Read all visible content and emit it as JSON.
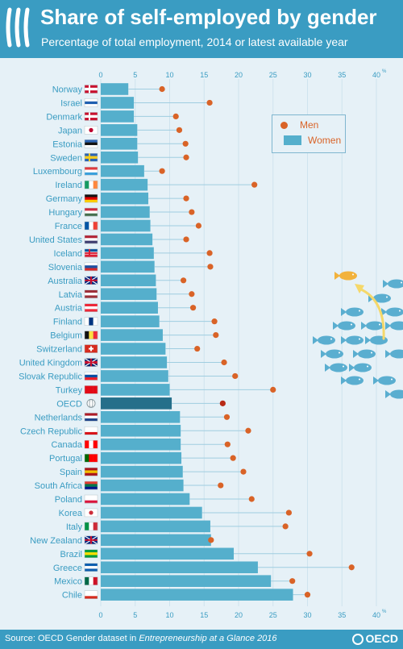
{
  "header": {
    "title": "Share of self-employed by gender",
    "subtitle": "Percentage of total employment, 2014 or latest available year"
  },
  "footer": {
    "source_prefix": "Source: OECD Gender dataset in ",
    "source_italic": "Entrepreneurship at a Glance 2016",
    "logo_text": "OECD"
  },
  "legend": {
    "men": "Men",
    "women": "Women"
  },
  "colors": {
    "header_bg": "#3a9cc2",
    "plot_bg": "#e6f1f7",
    "women_bar": "#55afcc",
    "oecd_bar": "#256f8a",
    "men_dot": "#d96327",
    "oecd_dot": "#b82a16",
    "label_text": "#3a9cc2",
    "fish": "#5aaed0",
    "gold_fish": "#f2b23c"
  },
  "icons": [
    "country-flag-icon",
    "fish-school-illustration",
    "gold-fish-icon",
    "oecd-globe-icon"
  ],
  "chart_data": {
    "type": "bar",
    "orientation": "horizontal",
    "xlim": [
      0,
      40
    ],
    "xticks": [
      "0",
      "5",
      "10",
      "15",
      "20",
      "25",
      "30",
      "35",
      "40"
    ],
    "x_unit": "%",
    "grid": true,
    "legend_position": "top-right",
    "categories": [
      "Norway",
      "Israel",
      "Denmark",
      "Japan",
      "Estonia",
      "Sweden",
      "Luxembourg",
      "Ireland",
      "Germany",
      "Hungary",
      "France",
      "United States",
      "Iceland",
      "Slovenia",
      "Australia",
      "Latvia",
      "Austria",
      "Finland",
      "Belgium",
      "Switzerland",
      "United Kingdom",
      "Slovak Republic",
      "Turkey",
      "OECD",
      "Netherlands",
      "Czech Republic",
      "Canada",
      "Portugal",
      "Spain",
      "South Africa",
      "Poland",
      "Korea",
      "Italy",
      "New Zealand",
      "Brazil",
      "Greece",
      "Mexico",
      "Chile"
    ],
    "series": [
      {
        "name": "Women",
        "values": [
          4.0,
          4.8,
          4.8,
          5.3,
          5.3,
          5.4,
          6.3,
          6.8,
          6.9,
          7.1,
          7.2,
          7.5,
          7.7,
          7.8,
          8.0,
          8.1,
          8.3,
          8.5,
          9.0,
          9.4,
          9.6,
          9.8,
          10.0,
          10.3,
          11.5,
          11.6,
          11.6,
          11.7,
          11.9,
          12.0,
          12.9,
          14.7,
          15.9,
          16.0,
          19.3,
          22.8,
          24.7,
          27.9
        ]
      },
      {
        "name": "Men",
        "values": [
          8.9,
          15.8,
          10.9,
          11.4,
          12.3,
          12.4,
          8.9,
          22.3,
          12.4,
          13.2,
          14.2,
          12.4,
          15.8,
          15.9,
          12.0,
          13.2,
          13.4,
          16.5,
          16.7,
          14.0,
          17.9,
          19.5,
          25.0,
          17.7,
          18.3,
          21.4,
          18.4,
          19.2,
          20.7,
          17.4,
          21.9,
          27.3,
          26.8,
          16.0,
          30.3,
          36.4,
          27.8,
          30.0
        ]
      }
    ]
  }
}
